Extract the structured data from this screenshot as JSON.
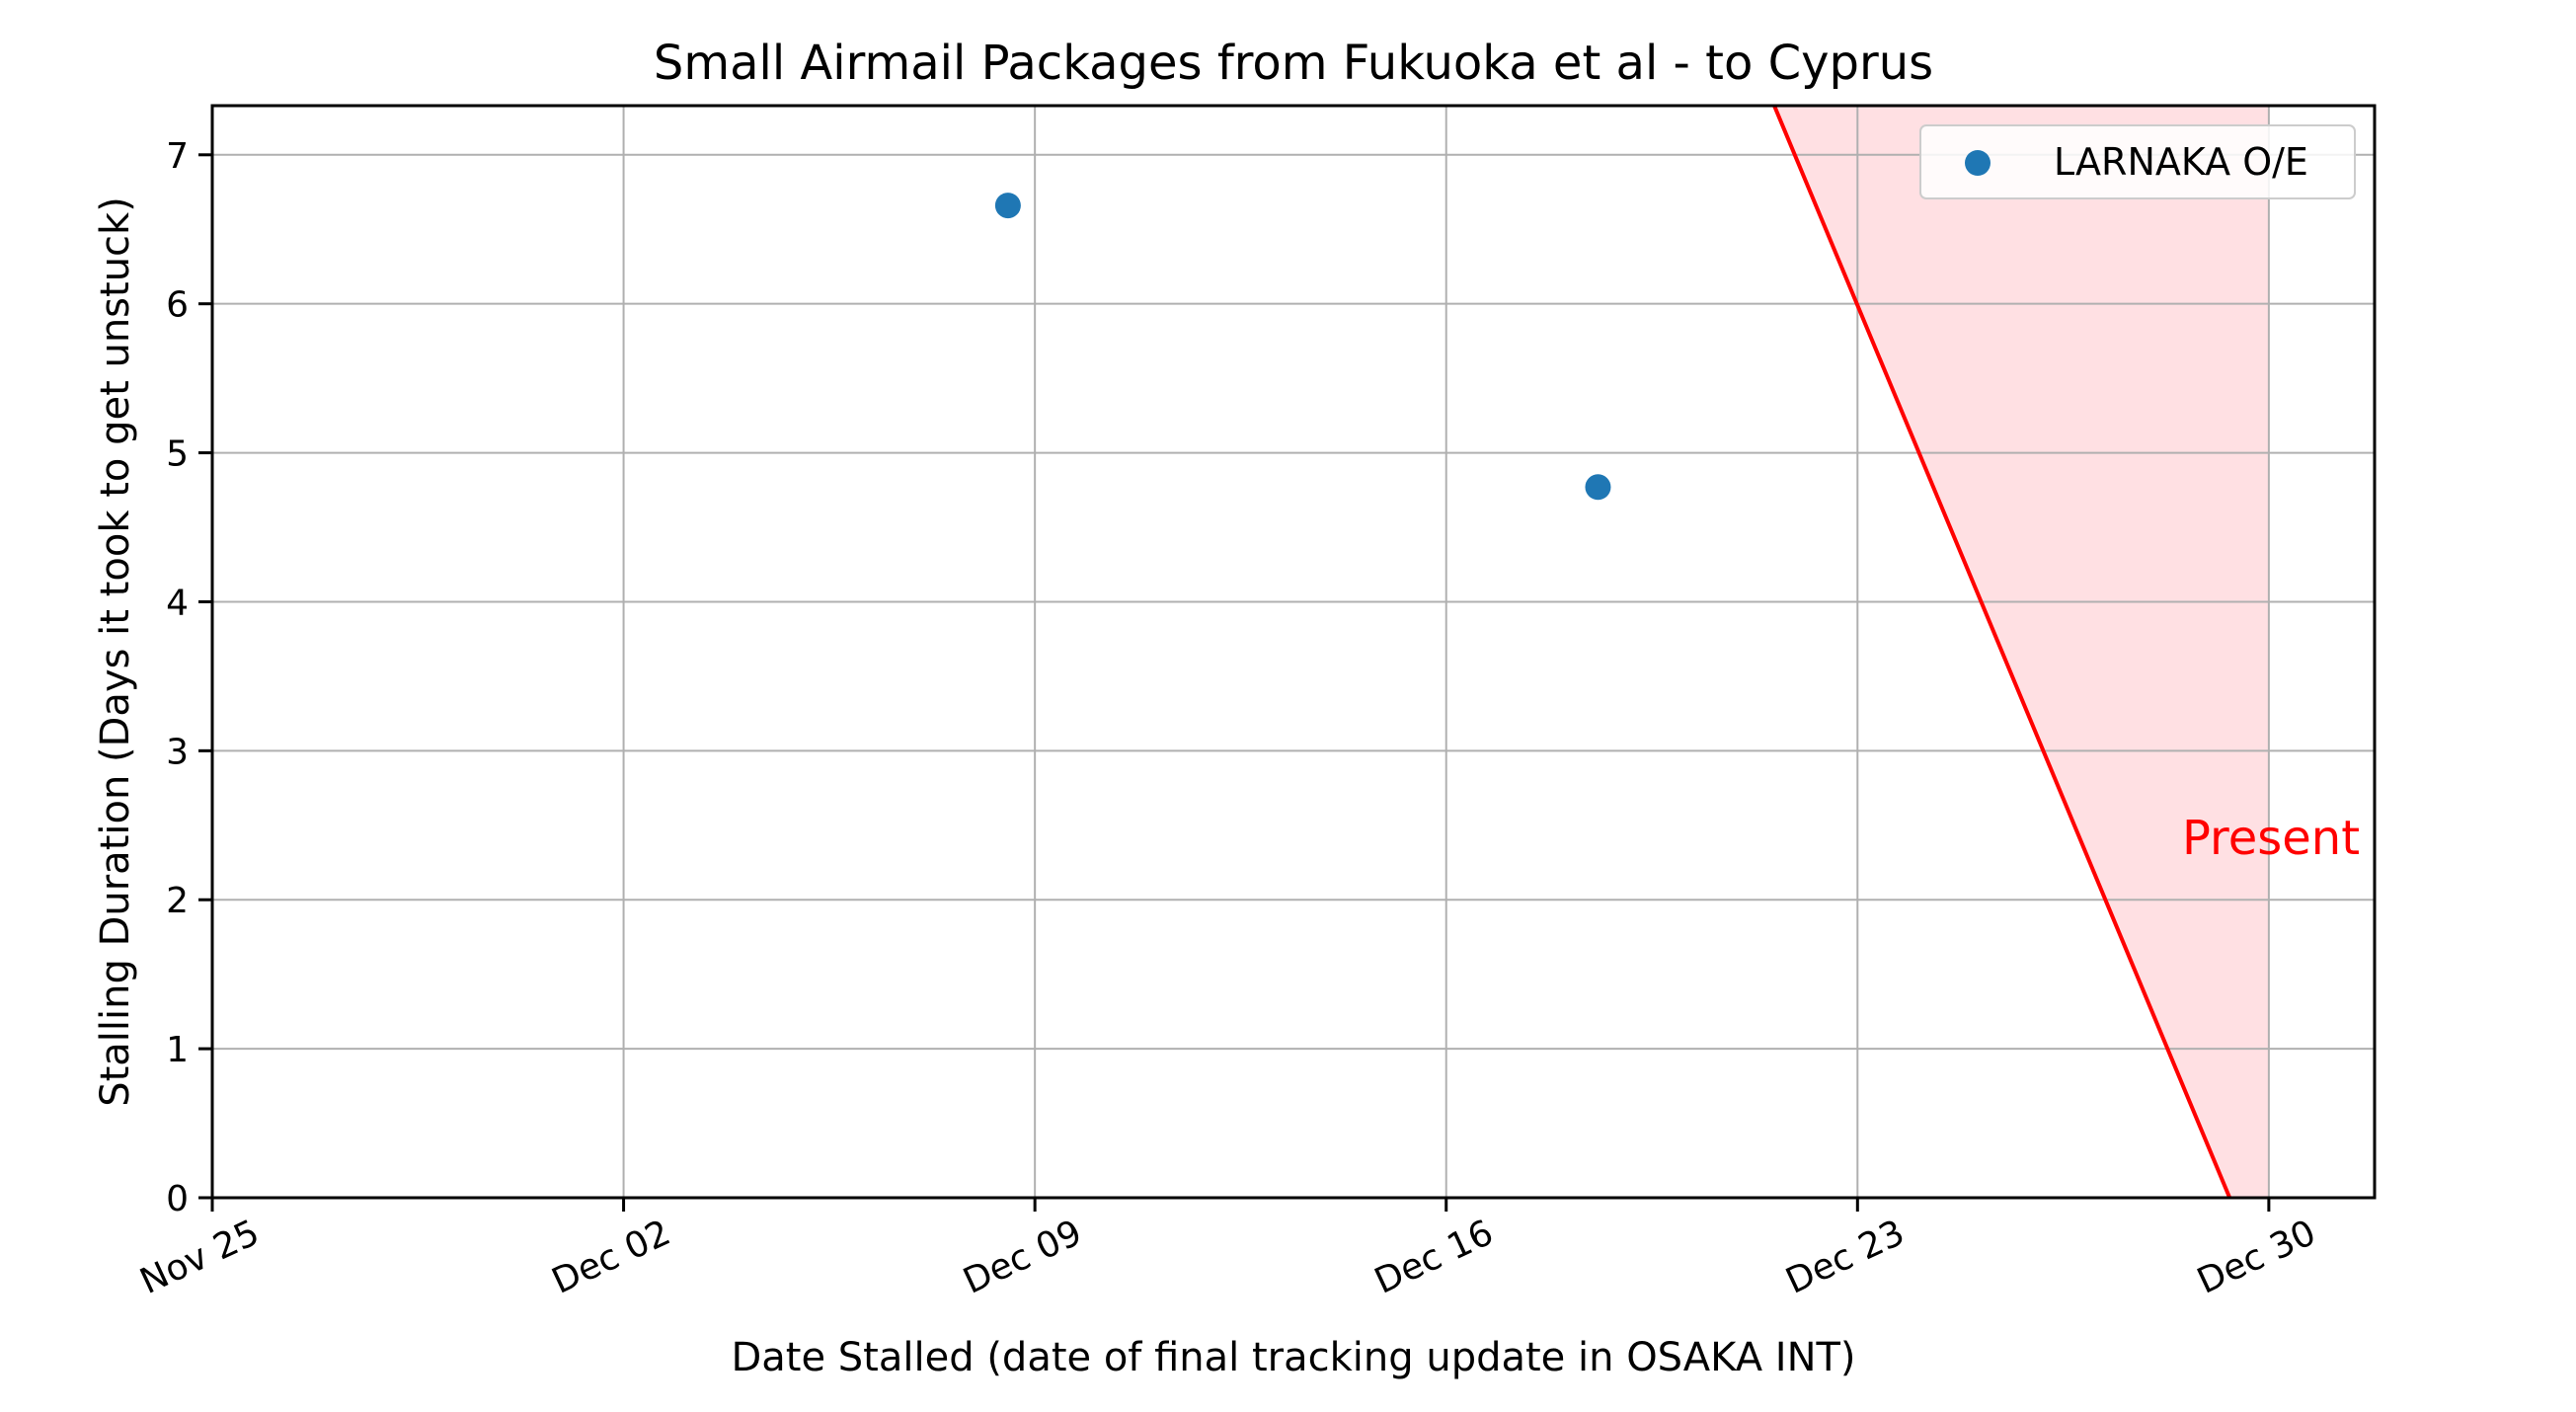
{
  "chart_data": {
    "type": "scatter",
    "title": "Small Airmail Packages from Fukuoka et al - to Cyprus",
    "xlabel": "Date Stalled (date of final tracking update in OSAKA INT)",
    "ylabel": "Stalling Duration (Days it took to get unstuck)",
    "x_axis": {
      "type": "date",
      "range": [
        "2024-11-25",
        "2024-12-31T19:12"
      ],
      "ticks": [
        {
          "date": "2024-11-25",
          "label": "Nov 25"
        },
        {
          "date": "2024-12-02",
          "label": "Dec 02"
        },
        {
          "date": "2024-12-09",
          "label": "Dec 09"
        },
        {
          "date": "2024-12-16",
          "label": "Dec 16"
        },
        {
          "date": "2024-12-23",
          "label": "Dec 23"
        },
        {
          "date": "2024-12-30",
          "label": "Dec 30"
        }
      ]
    },
    "y_axis": {
      "range": [
        0,
        7.33
      ],
      "ticks": [
        0,
        1,
        2,
        3,
        4,
        5,
        6,
        7
      ]
    },
    "grid": true,
    "legend": {
      "placement": "top-right"
    },
    "series": [
      {
        "name": "LARNAKA O/E",
        "color": "#1f77b4",
        "marker": "circle",
        "points": [
          {
            "x": "2024-12-08T13:00",
            "y": 6.66
          },
          {
            "x": "2024-12-18T14:00",
            "y": 4.77
          }
        ]
      }
    ],
    "present_region": {
      "label": "Present",
      "color": "#ff0000",
      "fill": "#ffe0e3",
      "present_date": "2024-12-30",
      "line": [
        {
          "x": "2024-12-21T14:00",
          "y": 7.33
        },
        {
          "x": "2024-12-29T08:00",
          "y": 0
        }
      ]
    }
  }
}
